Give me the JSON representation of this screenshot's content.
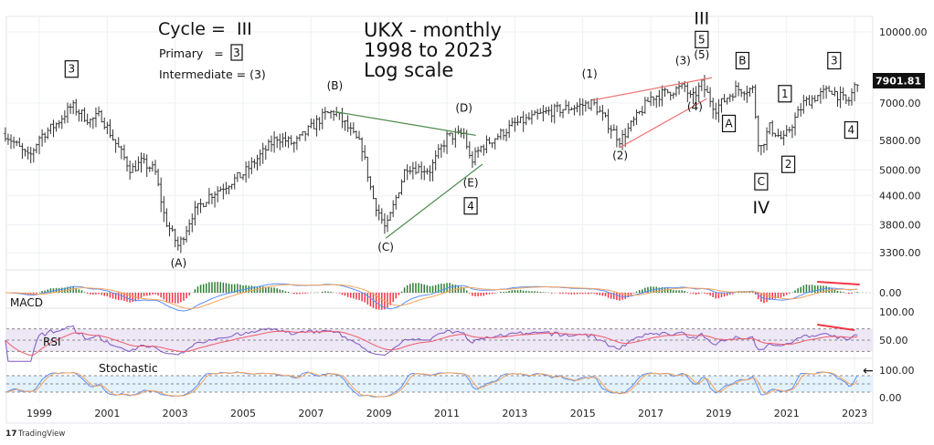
{
  "chart_data": {
    "type": "ohlc",
    "title": "UKX - monthly",
    "subtitle_lines": [
      "1998 to 2023",
      "Log scale"
    ],
    "legend": {
      "cycle_label": "Cycle =  III",
      "primary_label": "Primary   =",
      "primary_box": "3",
      "intermediate_label": "Intermediate = (3)"
    },
    "y_scale": "log",
    "ylim": [
      3000,
      11000
    ],
    "y_ticks": [
      {
        "value": 10000,
        "label": "10000.00"
      },
      {
        "value": 7000,
        "label": "7000.00"
      },
      {
        "value": 5800,
        "label": "5800.00"
      },
      {
        "value": 5000,
        "label": "5000.00"
      },
      {
        "value": 4400,
        "label": "4400.00"
      },
      {
        "value": 3800,
        "label": "3800.00"
      },
      {
        "value": 3300,
        "label": "3300.00"
      }
    ],
    "last_price": "7901.81",
    "xlim": [
      1998.0,
      2023.25
    ],
    "x_ticks": [
      "1999",
      "2001",
      "2003",
      "2005",
      "2007",
      "2009",
      "2011",
      "2013",
      "2015",
      "2017",
      "2019",
      "2021",
      "2023"
    ],
    "grid": true,
    "price_keypoints": [
      [
        1998.0,
        6000
      ],
      [
        1998.7,
        5300
      ],
      [
        1999.0,
        5900
      ],
      [
        1999.5,
        6300
      ],
      [
        1999.95,
        6900
      ],
      [
        2000.5,
        6400
      ],
      [
        2000.8,
        6600
      ],
      [
        2001.2,
        5800
      ],
      [
        2001.7,
        5000
      ],
      [
        2002.0,
        5200
      ],
      [
        2002.4,
        5000
      ],
      [
        2002.7,
        3900
      ],
      [
        2003.1,
        3400
      ],
      [
        2003.5,
        4000
      ],
      [
        2004.0,
        4400
      ],
      [
        2005.0,
        4900
      ],
      [
        2006.0,
        5900
      ],
      [
        2006.5,
        5700
      ],
      [
        2007.4,
        6600
      ],
      [
        2007.7,
        6700
      ],
      [
        2008.0,
        6300
      ],
      [
        2008.5,
        5600
      ],
      [
        2008.8,
        4400
      ],
      [
        2009.2,
        3700
      ],
      [
        2009.8,
        5100
      ],
      [
        2010.5,
        5000
      ],
      [
        2011.0,
        5900
      ],
      [
        2011.5,
        6000
      ],
      [
        2011.7,
        5200
      ],
      [
        2012.0,
        5600
      ],
      [
        2013.0,
        6300
      ],
      [
        2014.0,
        6700
      ],
      [
        2015.3,
        7000
      ],
      [
        2016.1,
        5800
      ],
      [
        2017.0,
        7200
      ],
      [
        2018.0,
        7600
      ],
      [
        2018.2,
        7100
      ],
      [
        2018.5,
        7700
      ],
      [
        2018.9,
        6800
      ],
      [
        2019.5,
        7500
      ],
      [
        2020.0,
        7500
      ],
      [
        2020.2,
        5500
      ],
      [
        2020.5,
        6200
      ],
      [
        2020.9,
        5800
      ],
      [
        2021.5,
        7000
      ],
      [
        2022.3,
        7500
      ],
      [
        2022.8,
        7000
      ],
      [
        2023.1,
        7900
      ]
    ],
    "wave_labels": [
      {
        "text": "3",
        "year": 1999.95,
        "price": 8150,
        "boxed": true
      },
      {
        "text": "(A)",
        "year": 2003.1,
        "price": 3080,
        "boxed": false
      },
      {
        "text": "(B)",
        "year": 2007.7,
        "price": 7500,
        "boxed": false
      },
      {
        "text": "(C)",
        "year": 2009.2,
        "price": 3330,
        "boxed": false
      },
      {
        "text": "(D)",
        "year": 2011.5,
        "price": 6700,
        "boxed": false
      },
      {
        "text": "(E)",
        "year": 2011.7,
        "price": 4600,
        "boxed": false
      },
      {
        "text": "4",
        "year": 2011.7,
        "price": 4100,
        "boxed": true
      },
      {
        "text": "(1)",
        "year": 2015.2,
        "price": 7950,
        "boxed": false
      },
      {
        "text": "(2)",
        "year": 2016.1,
        "price": 5280,
        "boxed": false
      },
      {
        "text": "(3)",
        "year": 2017.95,
        "price": 8500,
        "boxed": false
      },
      {
        "text": "(5)",
        "year": 2018.5,
        "price": 8750,
        "boxed": false
      },
      {
        "text": "(4)",
        "year": 2018.3,
        "price": 6750,
        "boxed": false
      },
      {
        "text": "5",
        "year": 2018.5,
        "price": 9450,
        "boxed": true
      },
      {
        "text": "III",
        "year": 2018.5,
        "price": 10600,
        "boxed": false,
        "big": true
      },
      {
        "text": "A",
        "year": 2019.3,
        "price": 6200,
        "boxed": true
      },
      {
        "text": "B",
        "year": 2019.7,
        "price": 8500,
        "boxed": true
      },
      {
        "text": "1",
        "year": 2020.95,
        "price": 7200,
        "boxed": true
      },
      {
        "text": "2",
        "year": 2021.05,
        "price": 5050,
        "boxed": true
      },
      {
        "text": "C",
        "year": 2020.25,
        "price": 4630,
        "boxed": true
      },
      {
        "text": "IV",
        "year": 2020.25,
        "price": 4100,
        "boxed": false,
        "big": true
      },
      {
        "text": "3",
        "year": 2022.4,
        "price": 8500,
        "boxed": true
      },
      {
        "text": "4",
        "year": 2022.9,
        "price": 6000,
        "boxed": true
      }
    ],
    "trendlines": [
      {
        "color": "#4a8a4a",
        "from": [
          2007.7,
          6700
        ],
        "to": [
          2011.85,
          5950
        ]
      },
      {
        "color": "#4a8a4a",
        "from": [
          2009.2,
          3550
        ],
        "to": [
          2012.05,
          5150
        ]
      },
      {
        "color": "#f07070",
        "from": [
          2015.3,
          7100
        ],
        "to": [
          2018.8,
          7950
        ]
      },
      {
        "color": "#f07070",
        "from": [
          2016.1,
          5600
        ],
        "to": [
          2018.65,
          7150
        ]
      }
    ],
    "indicators": {
      "macd": {
        "label": "MACD",
        "tick": "0.00",
        "colors": {
          "macd": "#5b8ff9",
          "signal": "#f7a35c",
          "hist_pos": "#2e7d32",
          "hist_neg": "#f23645"
        }
      },
      "rsi": {
        "label": "RSI",
        "ticks": [
          "100.00",
          "50.00"
        ],
        "levels": [
          70,
          50,
          30
        ],
        "colors": {
          "rsi": "#7e57c2",
          "ma": "#f05a6a",
          "band": "#ede7f6"
        }
      },
      "stochastic": {
        "label": "Stochastic",
        "ticks": [
          "100.00",
          "0.00"
        ],
        "levels": [
          80,
          50,
          20
        ],
        "colors": {
          "k": "#5b8ff9",
          "d": "#f7a35c",
          "band": "#e3f2fd"
        }
      },
      "divergence_color": "#f23645"
    }
  },
  "footer": {
    "brand": "TradingView"
  }
}
